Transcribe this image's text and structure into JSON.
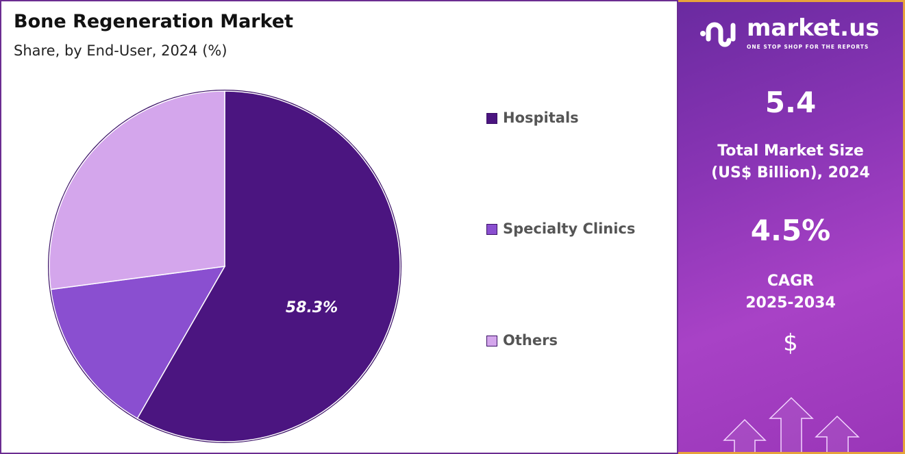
{
  "header": {
    "title": "Bone Regeneration  Market",
    "subtitle": "Share, by End-User, 2024 (%)"
  },
  "chart_data": {
    "type": "pie",
    "title": "Bone Regeneration  Market",
    "subtitle": "Share, by End-User, 2024 (%)",
    "categories": [
      "Hospitals",
      "Specialty Clinics",
      "Others"
    ],
    "values": [
      58.3,
      14.6,
      27.1
    ],
    "colors": [
      "#4b1580",
      "#8a4fd0",
      "#d4a6ec"
    ],
    "data_labels": [
      "58.3%",
      "",
      ""
    ],
    "legend": "right",
    "start_angle": "12 o'clock, clockwise"
  },
  "side_panel": {
    "logo": {
      "name": "market.us",
      "tagline": "ONE STOP SHOP FOR THE REPORTS"
    },
    "market_size": "5.4",
    "market_size_label_1": "Total Market Size",
    "market_size_label_2": "(US$ Billion), 2024",
    "cagr": "4.5%",
    "cagr_label_1": "CAGR",
    "cagr_label_2": "2025-2034",
    "dollar": "$"
  }
}
